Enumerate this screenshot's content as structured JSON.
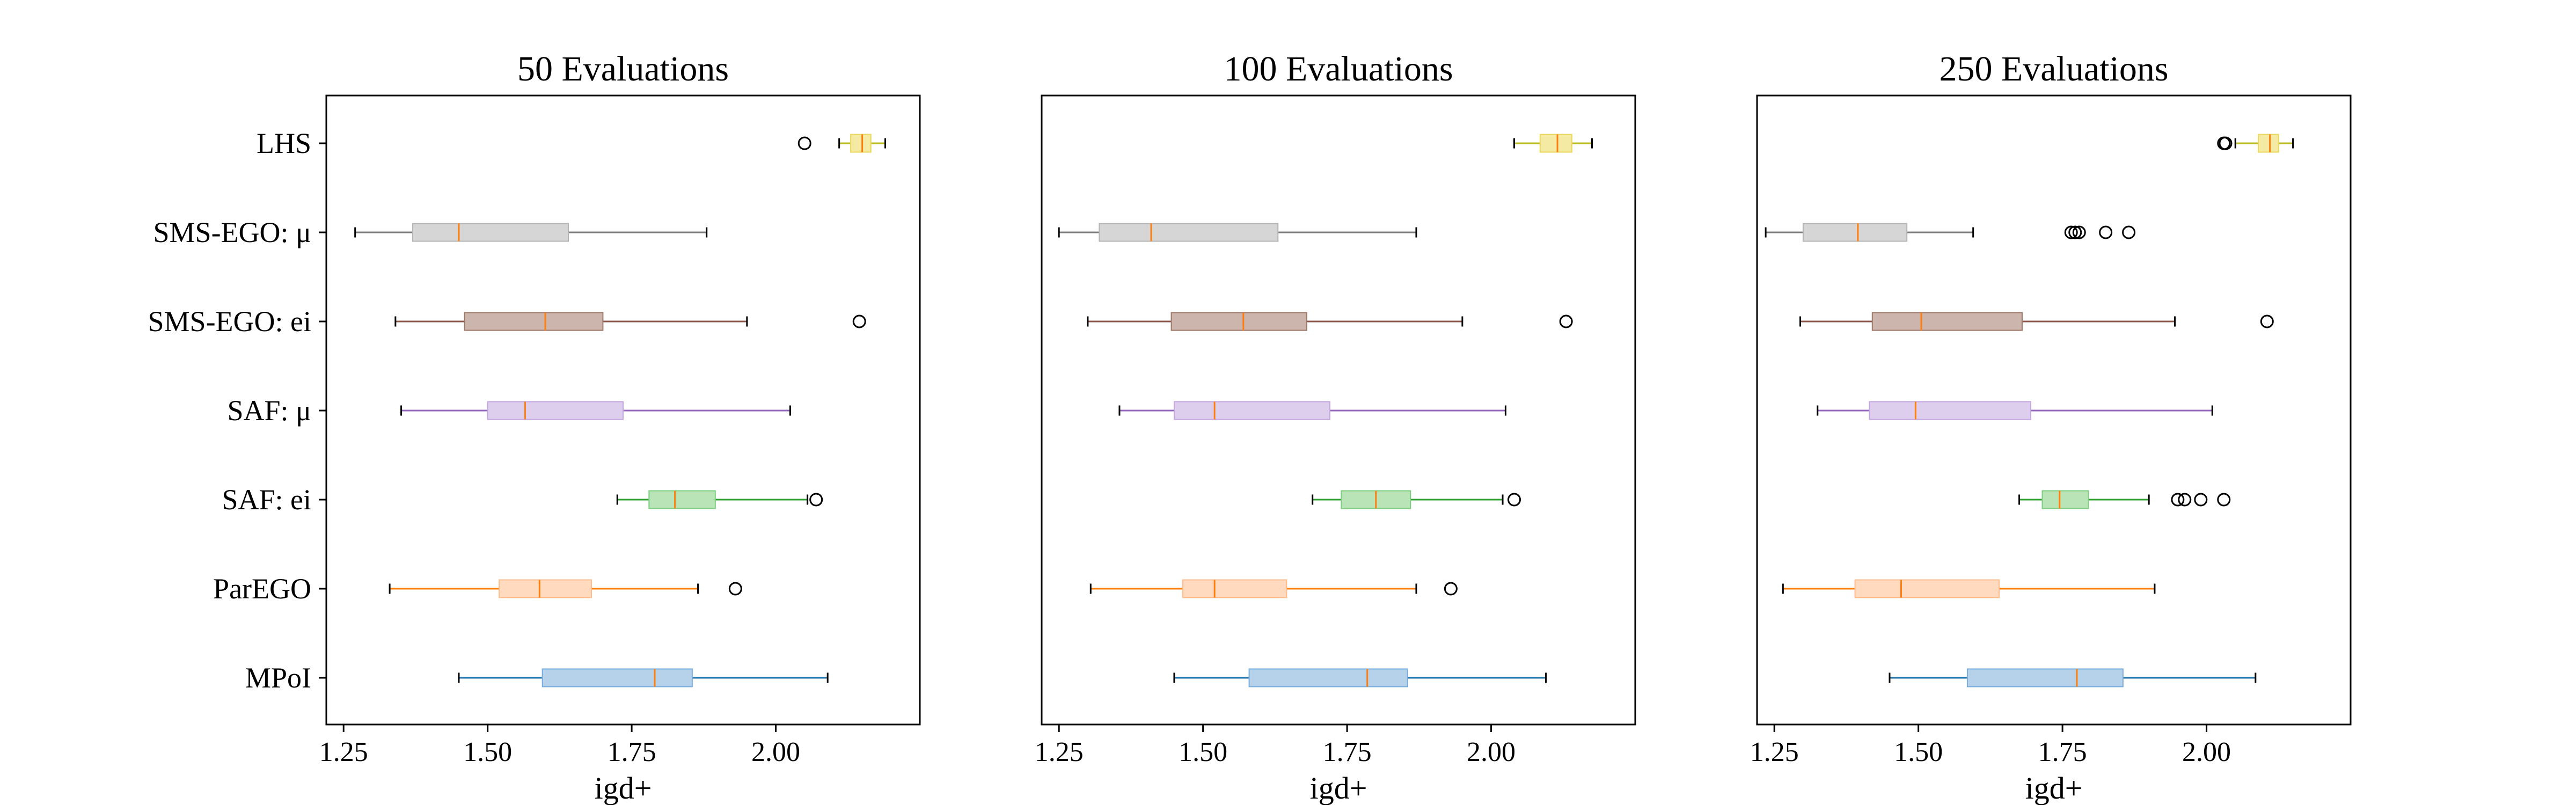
{
  "chart_data": [
    {
      "type": "boxplot",
      "orientation": "horizontal",
      "title": "50 Evaluations",
      "xlabel": "igd+",
      "xlim": [
        1.22,
        2.25
      ],
      "xticks": [
        "1.25",
        "1.50",
        "1.75",
        "2.00"
      ],
      "categories": [
        "LHS",
        "SMS-EGO: μ",
        "SMS-EGO: ei",
        "SAF: μ",
        "SAF: ei",
        "ParEGO",
        "MPoI"
      ],
      "boxes": [
        {
          "whislo": 2.11,
          "q1": 2.13,
          "med": 2.15,
          "q3": 2.165,
          "whishi": 2.19,
          "fliers": [
            2.05
          ]
        },
        {
          "whislo": 1.27,
          "q1": 1.37,
          "med": 1.45,
          "q3": 1.64,
          "whishi": 1.88,
          "fliers": []
        },
        {
          "whislo": 1.34,
          "q1": 1.46,
          "med": 1.6,
          "q3": 1.7,
          "whishi": 1.95,
          "fliers": [
            2.145
          ]
        },
        {
          "whislo": 1.35,
          "q1": 1.5,
          "med": 1.565,
          "q3": 1.735,
          "whishi": 2.025,
          "fliers": []
        },
        {
          "whislo": 1.725,
          "q1": 1.78,
          "med": 1.825,
          "q3": 1.895,
          "whishi": 2.055,
          "fliers": [
            2.07
          ]
        },
        {
          "whislo": 1.33,
          "q1": 1.52,
          "med": 1.59,
          "q3": 1.68,
          "whishi": 1.865,
          "fliers": [
            1.93
          ]
        },
        {
          "whislo": 1.45,
          "q1": 1.595,
          "med": 1.79,
          "q3": 1.855,
          "whishi": 2.09,
          "fliers": []
        }
      ]
    },
    {
      "type": "boxplot",
      "orientation": "horizontal",
      "title": "100 Evaluations",
      "xlabel": "igd+",
      "xlim": [
        1.22,
        2.25
      ],
      "xticks": [
        "1.25",
        "1.50",
        "1.75",
        "2.00"
      ],
      "categories": [
        "LHS",
        "SMS-EGO: μ",
        "SMS-EGO: ei",
        "SAF: μ",
        "SAF: ei",
        "ParEGO",
        "MPoI"
      ],
      "boxes": [
        {
          "whislo": 2.04,
          "q1": 2.085,
          "med": 2.115,
          "q3": 2.14,
          "whishi": 2.175,
          "fliers": []
        },
        {
          "whislo": 1.25,
          "q1": 1.32,
          "med": 1.41,
          "q3": 1.63,
          "whishi": 1.87,
          "fliers": []
        },
        {
          "whislo": 1.3,
          "q1": 1.445,
          "med": 1.57,
          "q3": 1.68,
          "whishi": 1.95,
          "fliers": [
            2.13
          ]
        },
        {
          "whislo": 1.355,
          "q1": 1.45,
          "med": 1.52,
          "q3": 1.72,
          "whishi": 2.025,
          "fliers": []
        },
        {
          "whislo": 1.69,
          "q1": 1.74,
          "med": 1.8,
          "q3": 1.86,
          "whishi": 2.02,
          "fliers": [
            2.04
          ]
        },
        {
          "whislo": 1.305,
          "q1": 1.465,
          "med": 1.52,
          "q3": 1.645,
          "whishi": 1.87,
          "fliers": [
            1.93
          ]
        },
        {
          "whislo": 1.45,
          "q1": 1.58,
          "med": 1.785,
          "q3": 1.855,
          "whishi": 2.095,
          "fliers": []
        }
      ]
    },
    {
      "type": "boxplot",
      "orientation": "horizontal",
      "title": "250 Evaluations",
      "xlabel": "igd+",
      "xlim": [
        1.22,
        2.25
      ],
      "xticks": [
        "1.25",
        "1.50",
        "1.75",
        "2.00"
      ],
      "categories": [
        "LHS",
        "SMS-EGO: μ",
        "SMS-EGO: ei",
        "SAF: μ",
        "SAF: ei",
        "ParEGO",
        "MPoI"
      ],
      "boxes": [
        {
          "whislo": 2.05,
          "q1": 2.09,
          "med": 2.11,
          "q3": 2.125,
          "whishi": 2.15,
          "fliers": [
            2.03,
            2.033
          ]
        },
        {
          "whislo": 1.235,
          "q1": 1.3,
          "med": 1.395,
          "q3": 1.48,
          "whishi": 1.595,
          "fliers": [
            1.765,
            1.772,
            1.779,
            1.825,
            1.865
          ]
        },
        {
          "whislo": 1.295,
          "q1": 1.42,
          "med": 1.505,
          "q3": 1.68,
          "whishi": 1.945,
          "fliers": [
            2.105
          ]
        },
        {
          "whislo": 1.325,
          "q1": 1.415,
          "med": 1.495,
          "q3": 1.695,
          "whishi": 2.01,
          "fliers": []
        },
        {
          "whislo": 1.675,
          "q1": 1.715,
          "med": 1.745,
          "q3": 1.795,
          "whishi": 1.9,
          "fliers": [
            1.95,
            1.962,
            1.99,
            2.03
          ]
        },
        {
          "whislo": 1.265,
          "q1": 1.39,
          "med": 1.47,
          "q3": 1.64,
          "whishi": 1.91,
          "fliers": []
        },
        {
          "whislo": 1.45,
          "q1": 1.585,
          "med": 1.775,
          "q3": 1.855,
          "whishi": 2.085,
          "fliers": []
        }
      ]
    }
  ],
  "colors": {
    "box_colors": [
      "#ebd85a",
      "#b4b4b4",
      "#a07868",
      "#c3a6e0",
      "#7dce7d",
      "#ffbb88",
      "#7aaddb"
    ],
    "line_colors": [
      "#bcbd22",
      "#7f7f7f",
      "#8c564b",
      "#9467bd",
      "#2ca02c",
      "#ff7f0e",
      "#1f77b4"
    ],
    "median": "#ff7f0e"
  }
}
